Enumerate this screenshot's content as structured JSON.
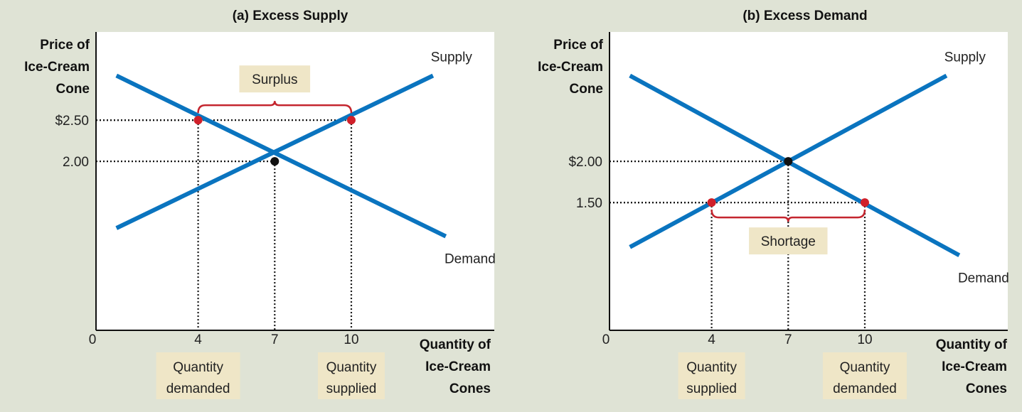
{
  "colors": {
    "background": "#dfe3d5",
    "curve": "#0a74bf",
    "point_red": "#d0202a",
    "point_eq": "#111111",
    "brace": "#c4252e",
    "label_box": "#efe6c7"
  },
  "chart_data": [
    {
      "type": "line",
      "title": "(a) Excess Supply",
      "ylabel": [
        "Price of",
        "Ice-Cream",
        "Cone"
      ],
      "xlabel": [
        "Quantity of",
        "Ice-Cream",
        "Cones"
      ],
      "origin_label": "0",
      "x_ticks": [
        {
          "value": 4,
          "label": "4"
        },
        {
          "value": 7,
          "label": "7"
        },
        {
          "value": 10,
          "label": "10"
        }
      ],
      "y_ticks": [
        {
          "value": 2.5,
          "label": "$2.50"
        },
        {
          "value": 2.0,
          "label": "2.00"
        }
      ],
      "xlim": [
        0,
        15.6
      ],
      "ylim": [
        -0.05,
        3.57
      ],
      "series": [
        {
          "name": "Supply",
          "x": [
            0.8,
            13.2
          ],
          "y": [
            1.19,
            3.04
          ]
        },
        {
          "name": "Demand",
          "x": [
            0.8,
            13.7
          ],
          "y": [
            3.04,
            1.09
          ]
        }
      ],
      "points": [
        {
          "x": 4,
          "y": 2.5,
          "kind": "red"
        },
        {
          "x": 10,
          "y": 2.5,
          "kind": "red"
        },
        {
          "x": 7,
          "y": 2.0,
          "kind": "equilibrium"
        }
      ],
      "guides": [
        {
          "x": 4,
          "y": 2.5
        },
        {
          "x": 10,
          "y": 2.5
        },
        {
          "x": 7,
          "y": 2.0
        }
      ],
      "brace": {
        "x1": 4,
        "x2": 10,
        "y": 2.5,
        "side": "above",
        "label": "Surplus"
      },
      "x_boxes": [
        {
          "x": 4,
          "lines": [
            "Quantity",
            "demanded"
          ]
        },
        {
          "x": 10,
          "lines": [
            "Quantity",
            "supplied"
          ]
        }
      ]
    },
    {
      "type": "line",
      "title": "(b) Excess Demand",
      "ylabel": [
        "Price of",
        "Ice-Cream",
        "Cone"
      ],
      "xlabel": [
        "Quantity of",
        "Ice-Cream",
        "Cones"
      ],
      "origin_label": "0",
      "x_ticks": [
        {
          "value": 4,
          "label": "4"
        },
        {
          "value": 7,
          "label": "7"
        },
        {
          "value": 10,
          "label": "10"
        }
      ],
      "y_ticks": [
        {
          "value": 2.0,
          "label": "$2.00"
        },
        {
          "value": 1.5,
          "label": "1.50"
        }
      ],
      "xlim": [
        0,
        15.6
      ],
      "ylim": [
        -0.05,
        3.57
      ],
      "series": [
        {
          "name": "Supply",
          "x": [
            0.8,
            13.2
          ],
          "y": [
            0.96,
            3.04
          ]
        },
        {
          "name": "Demand",
          "x": [
            0.8,
            13.7
          ],
          "y": [
            3.04,
            0.86
          ]
        }
      ],
      "points": [
        {
          "x": 4,
          "y": 1.5,
          "kind": "red"
        },
        {
          "x": 10,
          "y": 1.5,
          "kind": "red"
        },
        {
          "x": 7,
          "y": 2.0,
          "kind": "equilibrium"
        }
      ],
      "guides": [
        {
          "x": 4,
          "y": 1.5
        },
        {
          "x": 10,
          "y": 1.5
        },
        {
          "x": 7,
          "y": 2.0
        }
      ],
      "brace": {
        "x1": 4,
        "x2": 10,
        "y": 1.5,
        "side": "below",
        "label": "Shortage"
      },
      "x_boxes": [
        {
          "x": 4,
          "lines": [
            "Quantity",
            "supplied"
          ]
        },
        {
          "x": 10,
          "lines": [
            "Quantity",
            "demanded"
          ]
        }
      ]
    }
  ]
}
